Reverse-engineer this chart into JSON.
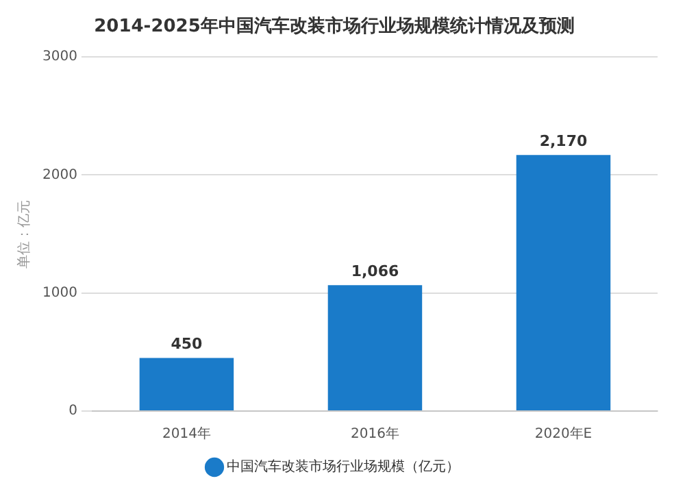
{
  "chart_data": {
    "type": "bar",
    "title": "2014-2025年中国汽车改装市场行业场规模统计情况及预测",
    "ylabel": "单位：亿元",
    "categories": [
      "2014年",
      "2016年",
      "2020年E"
    ],
    "series": [
      {
        "name": "中国汽车改装市场行业场规模（亿元）",
        "color": "#1a7bc9",
        "values": [
          450,
          1066,
          2170
        ],
        "value_labels": [
          "450",
          "1,066",
          "2,170"
        ]
      }
    ],
    "ylim": [
      0,
      3000
    ],
    "yticks": [
      0,
      1000,
      2000,
      3000
    ],
    "grid": "y",
    "legend": "bottom"
  }
}
